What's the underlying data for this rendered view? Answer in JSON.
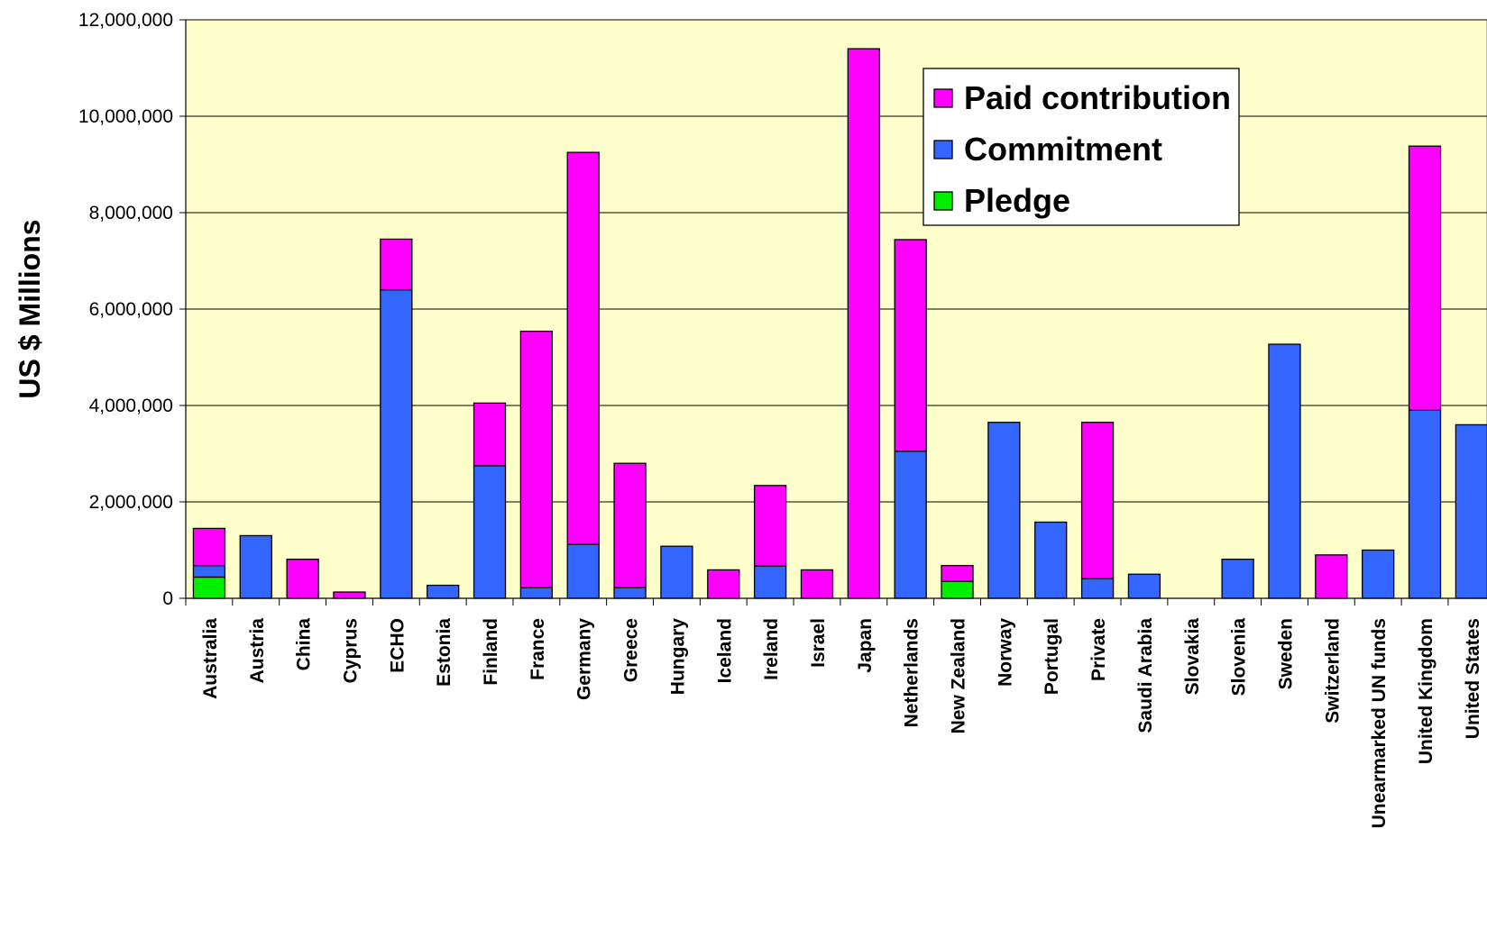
{
  "chart_data": {
    "type": "bar",
    "stacked": true,
    "ylabel": "US $ Millions",
    "ylim": [
      0,
      12000000
    ],
    "yticks": [
      "0",
      "2,000,000",
      "4,000,000",
      "6,000,000",
      "8,000,000",
      "10,000,000",
      "12,000,000"
    ],
    "ytick_values": [
      0,
      2000000,
      4000000,
      6000000,
      8000000,
      10000000,
      12000000
    ],
    "grid": true,
    "legend_position": "top-right",
    "categories": [
      "Australia",
      "Austria",
      "China",
      "Cyprus",
      "ECHO",
      "Estonia",
      "Finland",
      "France",
      "Germany",
      "Greece",
      "Hungary",
      "Iceland",
      "Ireland",
      "Israel",
      "Japan",
      "Netherlands",
      "New Zealand",
      "Norway",
      "Portugal",
      "Private",
      "Saudi Arabia",
      "Slovakia",
      "Slovenia",
      "Sweden",
      "Switzerland",
      "Unearmarked UN funds",
      "United Kingdom",
      "United States"
    ],
    "series": [
      {
        "name": "Pledge",
        "color": "#00ee00",
        "values": [
          440000,
          0,
          0,
          0,
          0,
          0,
          0,
          0,
          0,
          0,
          0,
          0,
          0,
          0,
          0,
          0,
          350000,
          0,
          0,
          0,
          0,
          0,
          0,
          0,
          0,
          0,
          0,
          0
        ]
      },
      {
        "name": "Commitment",
        "color": "#3366ff",
        "values": [
          240000,
          1300000,
          0,
          0,
          6400000,
          270000,
          2750000,
          220000,
          1120000,
          220000,
          1080000,
          0,
          670000,
          0,
          0,
          3050000,
          0,
          3650000,
          1580000,
          410000,
          500000,
          0,
          810000,
          5270000,
          0,
          1000000,
          3900000,
          3600000
        ]
      },
      {
        "name": "Paid contribution",
        "color": "#ff00ff",
        "values": [
          770000,
          0,
          810000,
          130000,
          1050000,
          0,
          1300000,
          5320000,
          8130000,
          2580000,
          0,
          590000,
          1670000,
          590000,
          11400000,
          4390000,
          330000,
          0,
          0,
          3240000,
          0,
          0,
          0,
          0,
          900000,
          0,
          5480000,
          0
        ]
      }
    ]
  }
}
